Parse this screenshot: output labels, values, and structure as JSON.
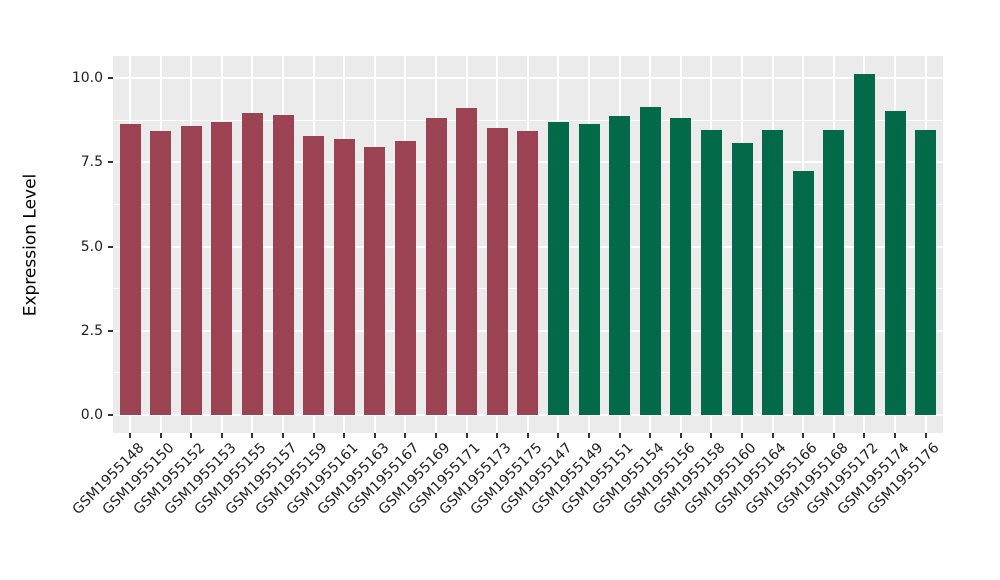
{
  "figure": {
    "background": "#FFFFFF",
    "panel_background": "#EBEBEB",
    "gridline_color": "#FFFFFF",
    "axis_text_color": "#1e1e1e",
    "tick_mark_color": "#333333"
  },
  "chart_data": {
    "type": "bar",
    "title": "",
    "xlabel": "",
    "ylabel": "Expression Level",
    "ylim": [
      0,
      10.62
    ],
    "y_ticks": [
      0,
      2.5,
      5,
      7.5,
      10
    ],
    "y_tick_labels": [
      "0.0",
      "2.5",
      "5.0",
      "7.5",
      "10.0"
    ],
    "y_minor_ticks": [
      1.25,
      3.75,
      6.25,
      8.75
    ],
    "grid": "white major and minor horizontal lines plus one vertical line per category on grey panel",
    "legend": false,
    "bar_colors": {
      "series-1": "#9C4353",
      "series-2": "#026949"
    },
    "series": [
      {
        "name": "series-1",
        "color": "#9C4353",
        "data": [
          {
            "label": "GSM1955148",
            "value": 8.63
          },
          {
            "label": "GSM1955150",
            "value": 8.43
          },
          {
            "label": "GSM1955152",
            "value": 8.58
          },
          {
            "label": "GSM1955153",
            "value": 8.7
          },
          {
            "label": "GSM1955155",
            "value": 8.97
          },
          {
            "label": "GSM1955157",
            "value": 8.9
          },
          {
            "label": "GSM1955159",
            "value": 8.28
          },
          {
            "label": "GSM1955161",
            "value": 8.18
          },
          {
            "label": "GSM1955163",
            "value": 7.96
          },
          {
            "label": "GSM1955167",
            "value": 8.13
          },
          {
            "label": "GSM1955169",
            "value": 8.8
          },
          {
            "label": "GSM1955171",
            "value": 9.12
          },
          {
            "label": "GSM1955173",
            "value": 8.53
          },
          {
            "label": "GSM1955175",
            "value": 8.43
          }
        ]
      },
      {
        "name": "series-2",
        "color": "#026949",
        "data": [
          {
            "label": "GSM1955147",
            "value": 8.69
          },
          {
            "label": "GSM1955149",
            "value": 8.63
          },
          {
            "label": "GSM1955151",
            "value": 8.88
          },
          {
            "label": "GSM1955154",
            "value": 9.15
          },
          {
            "label": "GSM1955156",
            "value": 8.82
          },
          {
            "label": "GSM1955158",
            "value": 8.46
          },
          {
            "label": "GSM1955160",
            "value": 8.08
          },
          {
            "label": "GSM1955164",
            "value": 8.46
          },
          {
            "label": "GSM1955166",
            "value": 7.24
          },
          {
            "label": "GSM1955168",
            "value": 8.46
          },
          {
            "label": "GSM1955172",
            "value": 10.12
          },
          {
            "label": "GSM1955174",
            "value": 9.03
          },
          {
            "label": "GSM1955176",
            "value": 8.46
          }
        ]
      }
    ]
  }
}
